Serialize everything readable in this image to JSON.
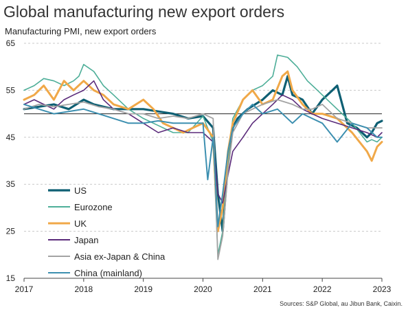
{
  "title": "Global manufacturing new export orders",
  "subtitle": "Manufacturing PMI, new export orders",
  "source": "Sources: S&P Global, au Jibun Bank, Caixin.",
  "chart_data": {
    "type": "line",
    "ylim": [
      15,
      65
    ],
    "y_ticks": [
      "15",
      "25",
      "35",
      "45",
      "55",
      "65"
    ],
    "xlim": [
      2017,
      2023
    ],
    "x_ticks": [
      "2017",
      "2018",
      "2019",
      "2020",
      "2021",
      "2022",
      "2023"
    ],
    "grid": "horizontal dashed",
    "reference_line": 50,
    "legend_position": "lower-left",
    "series": [
      {
        "name": "US",
        "color": "#0e5f73",
        "width": 3.2,
        "x": [
          2017.0,
          2017.25,
          2017.5,
          2017.75,
          2018.0,
          2018.17,
          2018.33,
          2018.5,
          2018.75,
          2019.0,
          2019.25,
          2019.5,
          2019.75,
          2020.0,
          2020.17,
          2020.25,
          2020.33,
          2020.42,
          2020.5,
          2020.58,
          2020.75,
          2021.0,
          2021.17,
          2021.33,
          2021.42,
          2021.5,
          2021.67,
          2021.83,
          2022.0,
          2022.17,
          2022.25,
          2022.42,
          2022.58,
          2022.75,
          2022.83,
          2022.92,
          2023.0
        ],
        "values": [
          51,
          51.5,
          52,
          51,
          53,
          52,
          51.5,
          51,
          51,
          51,
          50.5,
          50,
          49,
          49.5,
          47,
          33,
          25,
          40,
          47,
          49,
          51,
          53,
          55,
          54,
          58,
          54,
          53,
          50,
          53,
          55,
          56,
          48,
          47,
          45,
          46,
          48,
          48.5
        ]
      },
      {
        "name": "Eurozone",
        "color": "#4dae98",
        "width": 1.6,
        "x": [
          2017.0,
          2017.17,
          2017.33,
          2017.5,
          2017.67,
          2017.83,
          2017.92,
          2018.0,
          2018.17,
          2018.33,
          2018.5,
          2018.75,
          2019.0,
          2019.25,
          2019.5,
          2019.75,
          2020.0,
          2020.17,
          2020.25,
          2020.33,
          2020.42,
          2020.5,
          2020.67,
          2020.83,
          2021.0,
          2021.17,
          2021.25,
          2021.42,
          2021.58,
          2021.75,
          2021.92,
          2022.0,
          2022.25,
          2022.5,
          2022.75,
          2022.83,
          2022.92,
          2023.0
        ],
        "values": [
          55,
          56,
          57.5,
          57,
          56,
          57,
          58,
          60.5,
          59,
          56,
          54,
          51,
          49,
          47.5,
          46,
          46,
          49.5,
          44,
          20,
          25,
          40,
          49,
          53,
          55,
          56,
          58,
          62.5,
          62,
          60,
          57,
          55,
          54,
          51,
          48,
          44,
          44.5,
          44,
          45
        ]
      },
      {
        "name": "UK",
        "color": "#f0a848",
        "width": 3.0,
        "x": [
          2017.0,
          2017.17,
          2017.33,
          2017.5,
          2017.67,
          2017.83,
          2018.0,
          2018.17,
          2018.33,
          2018.5,
          2018.75,
          2019.0,
          2019.17,
          2019.33,
          2019.5,
          2019.67,
          2019.83,
          2020.0,
          2020.17,
          2020.25,
          2020.33,
          2020.42,
          2020.5,
          2020.67,
          2020.83,
          2021.0,
          2021.17,
          2021.33,
          2021.42,
          2021.5,
          2021.67,
          2021.83,
          2022.0,
          2022.25,
          2022.5,
          2022.75,
          2022.83,
          2022.92,
          2023.0
        ],
        "values": [
          53,
          54,
          56,
          53,
          57,
          55,
          57,
          55,
          54,
          52,
          51,
          53,
          51,
          48,
          47,
          46,
          47,
          48,
          45,
          25,
          30,
          42,
          48,
          53,
          55,
          52,
          53,
          58,
          59,
          55,
          52,
          50,
          50,
          49,
          46,
          42,
          40,
          43,
          44
        ]
      },
      {
        "name": "Japan",
        "color": "#5a2a7a",
        "width": 1.6,
        "x": [
          2017.0,
          2017.17,
          2017.33,
          2017.5,
          2017.67,
          2017.83,
          2018.0,
          2018.17,
          2018.33,
          2018.5,
          2018.75,
          2019.0,
          2019.25,
          2019.5,
          2019.75,
          2020.0,
          2020.17,
          2020.25,
          2020.33,
          2020.42,
          2020.5,
          2020.67,
          2020.83,
          2021.0,
          2021.17,
          2021.33,
          2021.5,
          2021.67,
          2021.83,
          2022.0,
          2022.25,
          2022.5,
          2022.75,
          2022.92,
          2023.0
        ],
        "values": [
          52,
          53,
          52,
          51,
          53,
          54,
          55,
          57,
          53,
          51,
          50,
          48,
          46,
          47,
          46,
          46,
          44,
          33,
          31,
          37,
          42,
          45,
          48,
          50,
          52,
          54,
          53,
          51,
          50,
          49,
          48,
          47,
          46,
          45,
          46
        ]
      },
      {
        "name": "Asia ex-Japan & China",
        "color": "#a3a3a3",
        "width": 1.8,
        "x": [
          2017.0,
          2017.25,
          2017.5,
          2017.75,
          2018.0,
          2018.25,
          2018.5,
          2018.75,
          2019.0,
          2019.25,
          2019.5,
          2019.75,
          2020.0,
          2020.17,
          2020.25,
          2020.33,
          2020.42,
          2020.5,
          2020.67,
          2020.83,
          2021.0,
          2021.25,
          2021.5,
          2021.67,
          2021.83,
          2022.0,
          2022.25,
          2022.5,
          2022.75,
          2022.92,
          2023.0
        ],
        "values": [
          51,
          52,
          51.5,
          52,
          52.5,
          51.5,
          51,
          50,
          50,
          49,
          49.5,
          49,
          50,
          49,
          19,
          24,
          38,
          46,
          50,
          51,
          52,
          53,
          52,
          51,
          51,
          52,
          49,
          48,
          47,
          47,
          47
        ]
      },
      {
        "name": "China (mainland)",
        "color": "#3c8fb0",
        "width": 2.0,
        "x": [
          2017.0,
          2017.25,
          2017.5,
          2017.75,
          2018.0,
          2018.25,
          2018.5,
          2018.75,
          2019.0,
          2019.25,
          2019.5,
          2019.75,
          2020.0,
          2020.08,
          2020.17,
          2020.25,
          2020.33,
          2020.42,
          2020.5,
          2020.67,
          2020.83,
          2021.0,
          2021.25,
          2021.5,
          2021.67,
          2021.83,
          2022.0,
          2022.25,
          2022.5,
          2022.75,
          2022.92,
          2023.0
        ],
        "values": [
          52,
          51,
          50,
          50.5,
          51,
          50,
          49,
          48,
          48,
          48.5,
          48,
          48,
          48,
          36,
          45,
          26,
          33,
          42,
          47,
          50,
          52,
          50,
          51,
          48,
          50,
          49,
          48,
          44,
          48,
          47,
          45,
          45
        ]
      }
    ]
  }
}
